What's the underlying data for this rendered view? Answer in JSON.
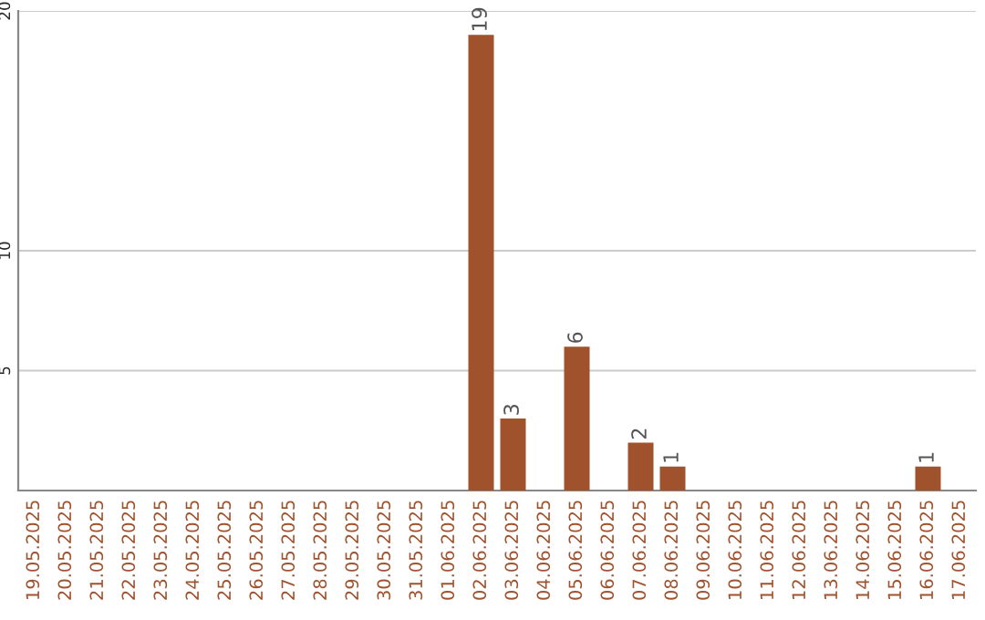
{
  "chart_data": {
    "type": "bar",
    "categories": [
      "19.05.2025",
      "20.05.2025",
      "21.05.2025",
      "22.05.2025",
      "23.05.2025",
      "24.05.2025",
      "25.05.2025",
      "26.05.2025",
      "27.05.2025",
      "28.05.2025",
      "29.05.2025",
      "30.05.2025",
      "31.05.2025",
      "01.06.2025",
      "02.06.2025",
      "03.06.2025",
      "04.06.2025",
      "05.06.2025",
      "06.06.2025",
      "07.06.2025",
      "08.06.2025",
      "09.06.2025",
      "10.06.2025",
      "11.06.2025",
      "12.06.2025",
      "13.06.2025",
      "14.06.2025",
      "15.06.2025",
      "16.06.2025",
      "17.06.2025"
    ],
    "values": [
      0,
      0,
      0,
      0,
      0,
      0,
      0,
      0,
      0,
      0,
      0,
      0,
      0,
      0,
      19,
      3,
      0,
      6,
      0,
      2,
      1,
      0,
      0,
      0,
      0,
      0,
      0,
      0,
      1,
      0
    ],
    "value_labels": [
      null,
      null,
      null,
      null,
      null,
      null,
      null,
      null,
      null,
      null,
      null,
      null,
      null,
      null,
      "19",
      "3",
      null,
      "6",
      null,
      "2",
      "1",
      null,
      null,
      null,
      null,
      null,
      null,
      null,
      "1",
      null
    ],
    "color": "#a0522d",
    "ylim": [
      0,
      20
    ],
    "yticks": [
      5,
      10,
      20
    ],
    "grid": "y",
    "legend": false
  }
}
